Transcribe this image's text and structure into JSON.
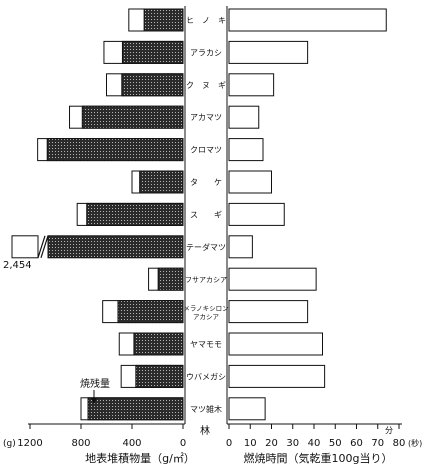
{
  "chart_data": [
    {
      "type": "bar",
      "orientation": "horizontal",
      "stacked": true,
      "xlabel": "地表堆積物量（g/㎡）",
      "xunit_tag": "(g)",
      "xticks": [
        "1200",
        "800",
        "400",
        "0"
      ],
      "xlim": [
        0,
        1200
      ],
      "reversed": true,
      "legend_annotation": "焼残量",
      "series": [
        {
          "name": "",
          "values": [
            305,
            475,
            480,
            790,
            1065,
            340,
            755,
            1080,
            195,
            510,
            385,
            370,
            745
          ]
        },
        {
          "name": "焼残量",
          "values": [
            120,
            145,
            120,
            100,
            75,
            60,
            75,
            155,
            75,
            120,
            115,
            115,
            55
          ]
        }
      ],
      "annotations": [
        {
          "category": "テーダマツ",
          "text": "2,454",
          "broken_bar": true
        }
      ]
    },
    {
      "type": "bar",
      "orientation": "horizontal",
      "xlabel": "燃焼時間（気乾重100g当り）",
      "xunit_tag": "(秒)",
      "xticks": [
        "0",
        "10",
        "20",
        "30",
        "40",
        "50",
        "60",
        "70",
        "80"
      ],
      "xlim": [
        0,
        80
      ],
      "values": [
        74,
        37,
        21,
        14,
        16,
        20,
        26,
        11,
        41,
        37,
        44,
        45,
        17
      ]
    }
  ],
  "shared": {
    "category_header": "林",
    "right_unit_tag": "分",
    "categories": [
      "ヒ　ノ　キ",
      "アラカシ",
      "ク　ヌ　ギ",
      "アカマツ",
      "クロマツ",
      "タ　　ケ",
      "ス　　ギ",
      "テーダマツ",
      "フサアカシア",
      "メラノキシロン\nアカシア",
      "ヤマモモ",
      "ウバメガシ",
      "マツ雑木"
    ]
  }
}
